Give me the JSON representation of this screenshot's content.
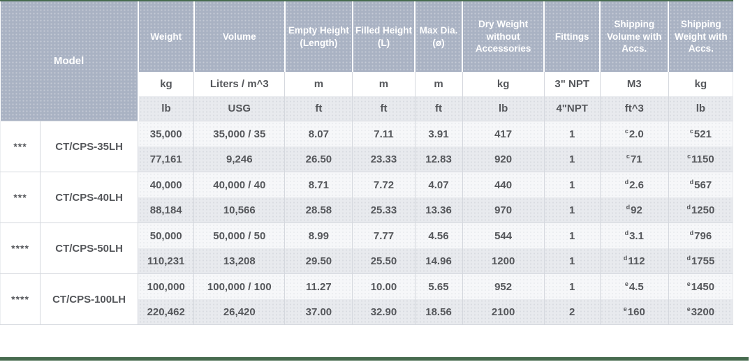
{
  "accent": {
    "green": "#476b4f",
    "header_blue": "#a9b2c3"
  },
  "table": {
    "model_header": "Model",
    "columns": [
      {
        "id": "weight",
        "label": "Weight",
        "metric_unit": "kg",
        "imperial_unit": "lb"
      },
      {
        "id": "volume",
        "label": "Volume",
        "metric_unit": "Liters / m^3",
        "imperial_unit": "USG"
      },
      {
        "id": "empty_height",
        "label": "Empty Height (Length)",
        "metric_unit": "m",
        "imperial_unit": "ft"
      },
      {
        "id": "filled_height",
        "label": "Filled Height (L)",
        "metric_unit": "m",
        "imperial_unit": "ft"
      },
      {
        "id": "max_dia",
        "label": "Max Dia. (ø)",
        "metric_unit": "m",
        "imperial_unit": "ft"
      },
      {
        "id": "dry_weight",
        "label": "Dry Weight without Accessories",
        "metric_unit": "kg",
        "imperial_unit": "lb"
      },
      {
        "id": "fittings",
        "label": "Fittings",
        "metric_unit": "3\" NPT",
        "imperial_unit": "4\"NPT"
      },
      {
        "id": "shipping_volume",
        "label": "Shipping Volume with Accs.",
        "metric_unit": "M3",
        "imperial_unit": "ft^3"
      },
      {
        "id": "shipping_weight",
        "label": "Shipping Weight with Accs.",
        "metric_unit": "kg",
        "imperial_unit": "lb"
      }
    ],
    "rows": [
      {
        "stars": "***",
        "model": "CT/CPS-35LH",
        "metric": {
          "weight": "35,000",
          "volume": "35,000 / 35",
          "empty_height": "8.07",
          "filled_height": "7.11",
          "max_dia": "3.91",
          "dry_weight": "417",
          "fittings": "1",
          "shipping_volume": {
            "sup": "c",
            "value": "2.0"
          },
          "shipping_weight": {
            "sup": "c",
            "value": "521"
          }
        },
        "imperial": {
          "weight": "77,161",
          "volume": "9,246",
          "empty_height": "26.50",
          "filled_height": "23.33",
          "max_dia": "12.83",
          "dry_weight": "920",
          "fittings": "1",
          "shipping_volume": {
            "sup": "c",
            "value": "71"
          },
          "shipping_weight": {
            "sup": "c",
            "value": "1150"
          }
        }
      },
      {
        "stars": "***",
        "model": "CT/CPS-40LH",
        "metric": {
          "weight": "40,000",
          "volume": "40,000 / 40",
          "empty_height": "8.71",
          "filled_height": "7.72",
          "max_dia": "4.07",
          "dry_weight": "440",
          "fittings": "1",
          "shipping_volume": {
            "sup": "d",
            "value": "2.6"
          },
          "shipping_weight": {
            "sup": "d",
            "value": "567"
          }
        },
        "imperial": {
          "weight": "88,184",
          "volume": "10,566",
          "empty_height": "28.58",
          "filled_height": "25.33",
          "max_dia": "13.36",
          "dry_weight": "970",
          "fittings": "1",
          "shipping_volume": {
            "sup": "d",
            "value": "92"
          },
          "shipping_weight": {
            "sup": "d",
            "value": "1250"
          }
        }
      },
      {
        "stars": "****",
        "model": "CT/CPS-50LH",
        "metric": {
          "weight": "50,000",
          "volume": "50,000 / 50",
          "empty_height": "8.99",
          "filled_height": "7.77",
          "max_dia": "4.56",
          "dry_weight": "544",
          "fittings": "1",
          "shipping_volume": {
            "sup": "d",
            "value": "3.1"
          },
          "shipping_weight": {
            "sup": "d",
            "value": "796"
          }
        },
        "imperial": {
          "weight": "110,231",
          "volume": "13,208",
          "empty_height": "29.50",
          "filled_height": "25.50",
          "max_dia": "14.96",
          "dry_weight": "1200",
          "fittings": "1",
          "shipping_volume": {
            "sup": "d",
            "value": "112"
          },
          "shipping_weight": {
            "sup": "d",
            "value": "1755"
          }
        }
      },
      {
        "stars": "****",
        "model": "CT/CPS-100LH",
        "metric": {
          "weight": "100,000",
          "volume": "100,000 / 100",
          "empty_height": "11.27",
          "filled_height": "10.00",
          "max_dia": "5.65",
          "dry_weight": "952",
          "fittings": "1",
          "shipping_volume": {
            "sup": "e",
            "value": "4.5"
          },
          "shipping_weight": {
            "sup": "e",
            "value": "1450"
          }
        },
        "imperial": {
          "weight": "220,462",
          "volume": "26,420",
          "empty_height": "37.00",
          "filled_height": "32.90",
          "max_dia": "18.56",
          "dry_weight": "2100",
          "fittings": "2",
          "shipping_volume": {
            "sup": "e",
            "value": "160"
          },
          "shipping_weight": {
            "sup": "e",
            "value": "3200"
          }
        }
      }
    ]
  }
}
